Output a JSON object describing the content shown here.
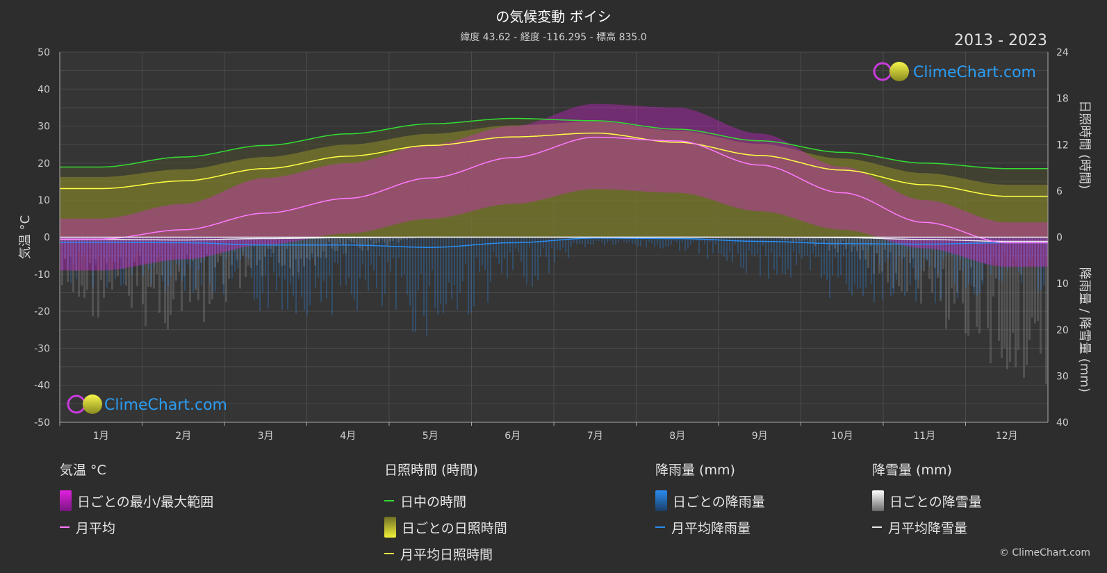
{
  "header": {
    "title": "の気候変動 ボイシ",
    "subtitle": "緯度 43.62 - 経度 -116.295 - 標高 835.0",
    "years": "2013 - 2023"
  },
  "brand": {
    "name": "ClimeChart.com",
    "copyright": "© ClimeChart.com"
  },
  "colors": {
    "background": "#2d2d2d",
    "temp_range": "#e020e0",
    "temp_avg": "#ff7aff",
    "daylight": "#33dd33",
    "sunshine": "#c8c82a",
    "sunshine_avg": "#ffff44",
    "rain": "#2a8cf0",
    "snow": "#e8e8e8",
    "brand_text": "#2a9df4"
  },
  "chart_data": {
    "type": "line",
    "months": [
      "1月",
      "2月",
      "3月",
      "4月",
      "5月",
      "6月",
      "7月",
      "8月",
      "9月",
      "10月",
      "11月",
      "12月"
    ],
    "axes": {
      "left": {
        "label": "気温 °C",
        "ticks": [
          50,
          40,
          30,
          20,
          10,
          0,
          -10,
          -20,
          -30,
          -40,
          -50
        ],
        "range": [
          -50,
          50
        ]
      },
      "right_top": {
        "label": "日照時間 (時間)",
        "ticks": [
          24,
          18,
          12,
          6,
          0
        ],
        "range": [
          0,
          24
        ]
      },
      "right_bottom": {
        "label": "降雨量 / 降雪量 (mm)",
        "ticks": [
          10,
          20,
          30,
          40
        ],
        "range": [
          0,
          40
        ]
      }
    },
    "grid": true,
    "series": [
      {
        "name": "月平均",
        "axis": "left",
        "values": [
          -0.5,
          2,
          6.5,
          10.5,
          16,
          21.5,
          27,
          26,
          19.5,
          12,
          4,
          -1.5
        ]
      },
      {
        "name": "日中の時間",
        "axis": "right_top",
        "values": [
          9.1,
          10.4,
          11.9,
          13.4,
          14.7,
          15.4,
          15.1,
          14.0,
          12.5,
          11.0,
          9.6,
          8.9
        ]
      },
      {
        "name": "月平均日照時間",
        "axis": "right_top",
        "values": [
          6.3,
          7.3,
          8.9,
          10.5,
          11.9,
          13.0,
          13.5,
          12.3,
          10.6,
          8.7,
          6.8,
          5.3
        ]
      },
      {
        "name": "月平均降雨量",
        "axis": "right_bottom",
        "values": [
          1.1,
          1.2,
          1.7,
          1.7,
          2.2,
          1.2,
          0.2,
          0.3,
          0.9,
          1.4,
          1.5,
          1.2
        ]
      },
      {
        "name": "月平均降雪量",
        "axis": "right_bottom",
        "values": [
          0.5,
          0.6,
          0.3,
          0.1,
          0,
          0,
          0,
          0,
          0,
          0.1,
          0.5,
          0.9
        ]
      }
    ],
    "daily_range": {
      "name": "日ごとの最小/最大範囲",
      "min": [
        -9,
        -6,
        -2,
        1,
        5,
        9,
        13,
        12,
        7,
        2,
        -3,
        -8
      ],
      "max": [
        5,
        9,
        16,
        20,
        25,
        30,
        36,
        35,
        28,
        19,
        10,
        4
      ]
    }
  },
  "legend": {
    "temperature": {
      "heading": "気温 °C",
      "items": [
        "日ごとの最小/最大範囲",
        "月平均"
      ]
    },
    "sunshine": {
      "heading": "日照時間 (時間)",
      "items": [
        "日中の時間",
        "日ごとの日照時間",
        "月平均日照時間"
      ]
    },
    "rain": {
      "heading": "降雨量 (mm)",
      "items": [
        "日ごとの降雨量",
        "月平均降雨量"
      ]
    },
    "snow": {
      "heading": "降雪量 (mm)",
      "items": [
        "日ごとの降雪量",
        "月平均降雪量"
      ]
    }
  }
}
